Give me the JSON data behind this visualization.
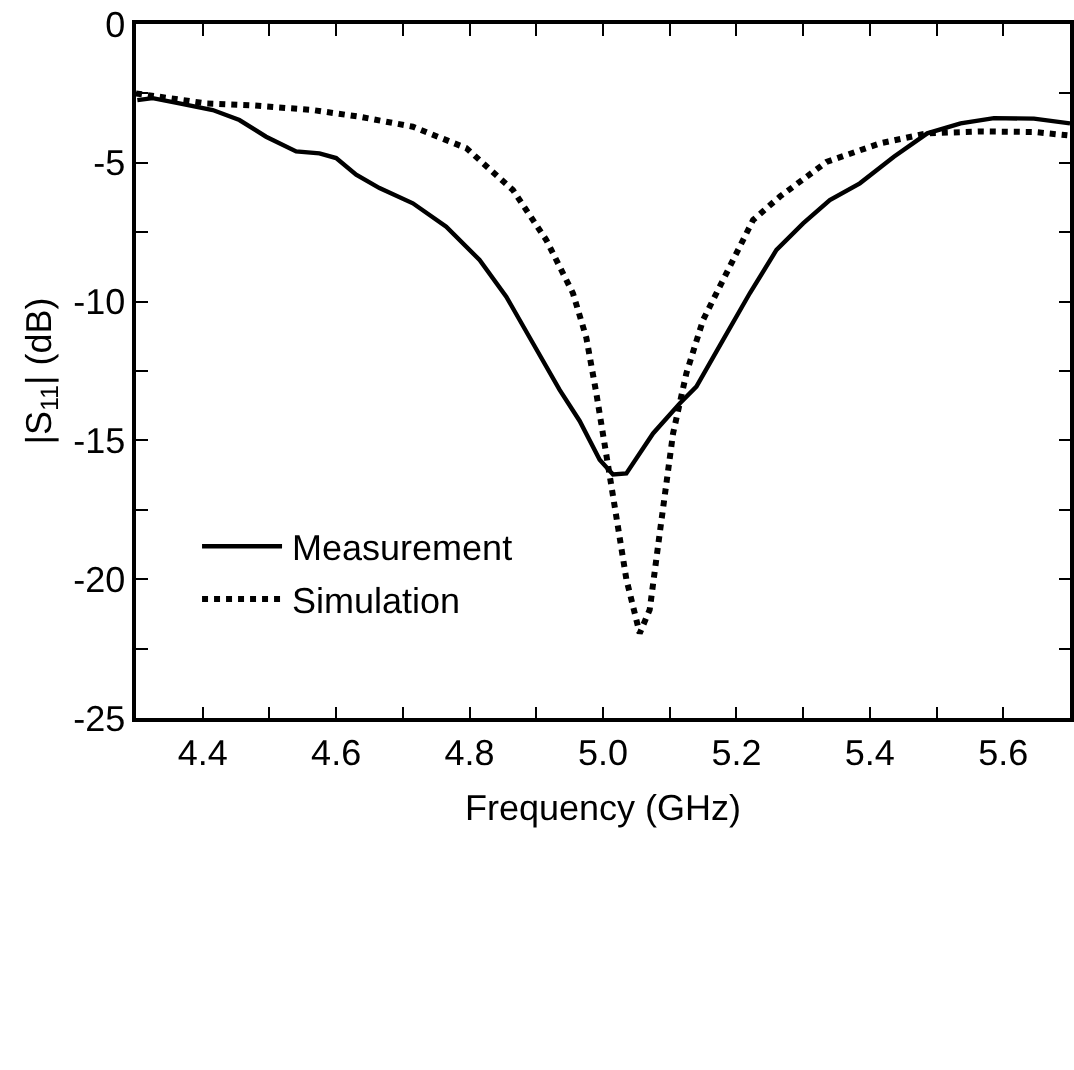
{
  "chart_data": {
    "type": "line",
    "xlabel": "Frequency (GHz)",
    "ylabel": "|S$_{11}$| (dB)",
    "xlim": [
      4.3,
      5.7
    ],
    "ylim": [
      -25,
      0
    ],
    "xticks": [
      4.4,
      {
        "value": 4.5,
        "label": null
      },
      4.6,
      {
        "value": 4.7,
        "label": null
      },
      4.8,
      {
        "value": 4.9,
        "label": null
      },
      {
        "value": 5,
        "label": "5.0"
      },
      {
        "value": 5.1,
        "label": null
      },
      5.2,
      {
        "value": 5.3,
        "label": null
      },
      5.4,
      {
        "value": 5.5,
        "label": null
      },
      5.6
    ],
    "yticks": [
      -25,
      {
        "value": -22.5,
        "label": null
      },
      -20,
      {
        "value": -17.5,
        "label": null
      },
      -15,
      {
        "value": -12.5,
        "label": null
      },
      -10,
      {
        "value": -7.5,
        "label": null
      },
      -5,
      {
        "value": -2.5,
        "label": null
      },
      0
    ],
    "grid": false,
    "legend": "bottom left",
    "series": [
      {
        "name": "Measurement",
        "color": "#000000",
        "line_style": "solid",
        "x": [
          4.302,
          4.325,
          4.365,
          4.415,
          4.455,
          4.495,
          4.54,
          4.575,
          4.6,
          4.63,
          4.665,
          4.715,
          4.765,
          4.815,
          4.855,
          4.895,
          4.935,
          4.965,
          4.995,
          5.015,
          5.035,
          5.075,
          5.115,
          5.14,
          5.18,
          5.22,
          5.26,
          5.3,
          5.34,
          5.385,
          5.436,
          5.486,
          5.536,
          5.586,
          5.646,
          5.7
        ],
        "values": [
          -2.74,
          -2.67,
          -2.86,
          -3.1,
          -3.46,
          -4.06,
          -4.59,
          -4.66,
          -4.83,
          -5.43,
          -5.91,
          -6.46,
          -7.3,
          -8.5,
          -9.82,
          -11.5,
          -13.18,
          -14.3,
          -15.7,
          -16.23,
          -16.19,
          -14.75,
          -13.67,
          -13.06,
          -11.38,
          -9.7,
          -8.14,
          -7.18,
          -6.34,
          -5.74,
          -4.78,
          -3.94,
          -3.58,
          -3.39,
          -3.41,
          -3.58
        ]
      },
      {
        "name": "Simulation",
        "color": "#000000",
        "line_style": "dotted",
        "x": [
          4.3,
          4.405,
          4.475,
          4.565,
          4.635,
          4.715,
          4.795,
          4.865,
          4.915,
          4.955,
          4.975,
          4.99,
          5.015,
          5.035,
          5.055,
          5.07,
          5.085,
          5.105,
          5.125,
          5.15,
          5.18,
          5.225,
          5.265,
          5.335,
          5.415,
          5.485,
          5.566,
          5.646,
          5.696
        ],
        "values": [
          -2.5,
          -2.86,
          -2.93,
          -3.1,
          -3.34,
          -3.7,
          -4.47,
          -5.98,
          -7.78,
          -9.7,
          -11.3,
          -13.3,
          -17.0,
          -20.0,
          -21.95,
          -21.1,
          -18.35,
          -14.75,
          -12.58,
          -10.66,
          -9.22,
          -7.06,
          -6.22,
          -4.97,
          -4.3,
          -3.94,
          -3.87,
          -3.89,
          -4.01
        ]
      }
    ]
  }
}
